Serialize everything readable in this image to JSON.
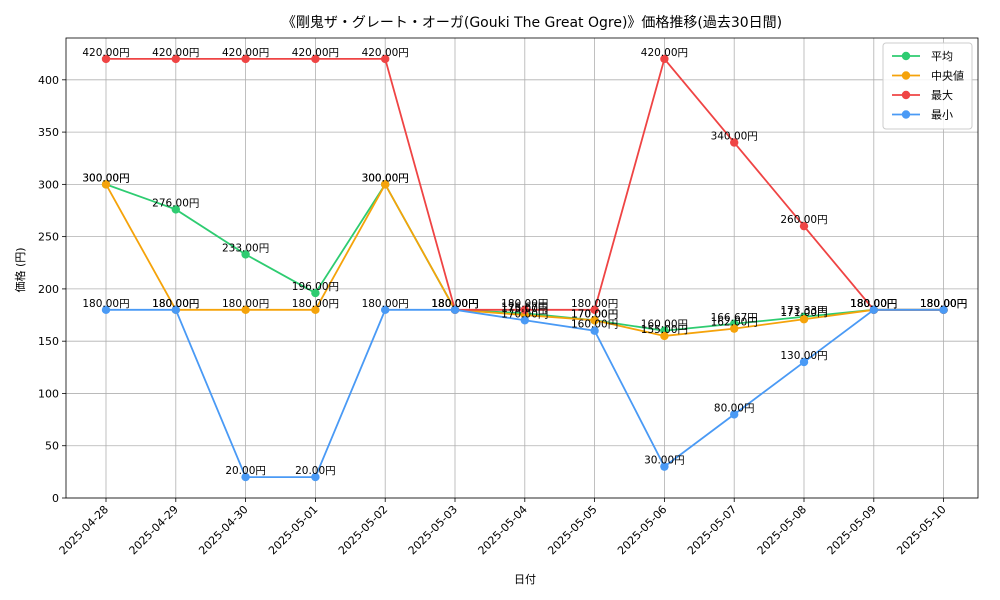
{
  "chart_data": {
    "type": "line",
    "title": "《剛鬼ザ・グレート・オーガ(Gouki The Great Ogre)》価格推移(過去30日間)",
    "xlabel": "日付",
    "ylabel": "価格 (円)",
    "ylim": [
      0,
      440
    ],
    "yticks": [
      0,
      50,
      100,
      150,
      200,
      250,
      300,
      350,
      400
    ],
    "grid": true,
    "legend_position": "top-right",
    "categories": [
      "2025-04-28",
      "2025-04-29",
      "2025-04-30",
      "2025-05-01",
      "2025-05-02",
      "2025-05-03",
      "2025-05-04",
      "2025-05-05",
      "2025-05-06",
      "2025-05-07",
      "2025-05-08",
      "2025-05-09",
      "2025-05-10"
    ],
    "series": [
      {
        "name": "平均",
        "color": "#2ecc71",
        "values": [
          300,
          276,
          233,
          196,
          300,
          180,
          176.67,
          170,
          160,
          166.67,
          173.33,
          180,
          180
        ],
        "labels": [
          "300.00円",
          "276.00円",
          "233.00円",
          "196.00円",
          "300.00円",
          "180.00円",
          "176.67円",
          "170.00円",
          "160.00円",
          "166.67円",
          "173.33円",
          "180.00円",
          "180.00円"
        ]
      },
      {
        "name": "中央値",
        "color": "#f5a30a",
        "values": [
          300,
          180,
          180,
          180,
          300,
          180,
          175,
          170,
          155,
          162,
          171,
          180,
          180
        ],
        "labels": [
          "300.00円",
          "180.00円",
          "180.00円",
          "180.00円",
          "300.00円",
          "180.00円",
          "175.00円",
          "170.00円",
          "155.00円",
          "162.00円",
          "171.00円",
          "180.00円",
          "180.00円"
        ]
      },
      {
        "name": "最大",
        "color": "#ef4444",
        "values": [
          420,
          420,
          420,
          420,
          420,
          180,
          180,
          180,
          420,
          340,
          260,
          180,
          180
        ],
        "labels": [
          "420.00円",
          "420.00円",
          "420.00円",
          "420.00円",
          "420.00円",
          "180.00円",
          "180.00円",
          "180.00円",
          "420.00円",
          "340.00円",
          "260.00円",
          "180.00円",
          "180.00円"
        ]
      },
      {
        "name": "最小",
        "color": "#4a9af5",
        "values": [
          180,
          180,
          20,
          20,
          180,
          180,
          170,
          160,
          30,
          80,
          130,
          180,
          180
        ],
        "labels": [
          "180.00円",
          "180.00円",
          "20.00円",
          "20.00円",
          "180.00円",
          "180.00円",
          "170.00円",
          "160.00円",
          "30.00円",
          "80.00円",
          "130.00円",
          "180.00円",
          "180.00円"
        ]
      }
    ]
  }
}
